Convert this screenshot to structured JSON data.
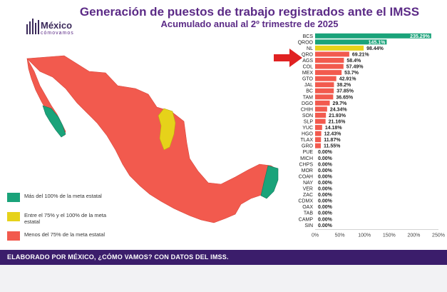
{
  "header": {
    "title": "Generación de puestos de trabajo registrados ante el IMSS",
    "subtitle": "Acumulado anual al 2º trimestre de 2025"
  },
  "logo": {
    "name": "México",
    "tagline": "cómovamos"
  },
  "legend": [
    {
      "label": "Más del 100% de la meta estatal",
      "color": "#1aa37a"
    },
    {
      "label": "Entre el 75% y el 100% de la meta estatal",
      "color": "#e6d21a"
    },
    {
      "label": "Menos del 75% de la meta estatal",
      "color": "#f25a4e"
    }
  ],
  "footer": {
    "text": "ELABORADO POR MÉXICO, ¿CÓMO VAMOS? CON DATOS DEL IMSS."
  },
  "colors": {
    "green": "#1aa37a",
    "yellow": "#e6d21a",
    "red": "#f25a4e",
    "purple": "#5b2a86",
    "footer": "#3b1d6b"
  },
  "chart_data": {
    "type": "bar",
    "orientation": "horizontal",
    "categories": [
      "BCS",
      "QROO",
      "NL",
      "QRO",
      "AGS",
      "COL",
      "MEX",
      "GTO",
      "JAL",
      "BC",
      "TAM",
      "DGO",
      "CHIH",
      "SON",
      "SLP",
      "YUC",
      "HGO",
      "TLAX",
      "GRO",
      "PUE",
      "MICH",
      "CHPS",
      "MOR",
      "COAH",
      "NAY",
      "VER",
      "ZAC",
      "CDMX",
      "OAX",
      "TAB",
      "CAMP",
      "SIN"
    ],
    "values": [
      235.29,
      145.1,
      98.44,
      69.21,
      58.4,
      57.49,
      53.7,
      42.91,
      38.2,
      37.85,
      36.65,
      29.7,
      24.34,
      21.93,
      21.16,
      14.18,
      12.43,
      11.87,
      11.55,
      0,
      0,
      0,
      0,
      0,
      0,
      0,
      0,
      0,
      0,
      0,
      0,
      0
    ],
    "labels": [
      "235.29%",
      "145.1%",
      "98.44%",
      "69.21%",
      "58.4%",
      "57.49%",
      "53.7%",
      "42.91%",
      "38.2%",
      "37.85%",
      "36.65%",
      "29.7%",
      "24.34%",
      "21.93%",
      "21.16%",
      "14.18%",
      "12.43%",
      "11.87%",
      "11.55%",
      "0.00%",
      "0.00%",
      "0.00%",
      "0.00%",
      "0.00%",
      "0.00%",
      "0.00%",
      "0.00%",
      "0.00%",
      "0.00%",
      "0.00%",
      "0.00%",
      "0.00%"
    ],
    "xlim": [
      0,
      250
    ],
    "xticks": [
      "0%",
      "50%",
      "100%",
      "150%",
      "200%",
      "250%"
    ],
    "highlight": "QRO"
  }
}
